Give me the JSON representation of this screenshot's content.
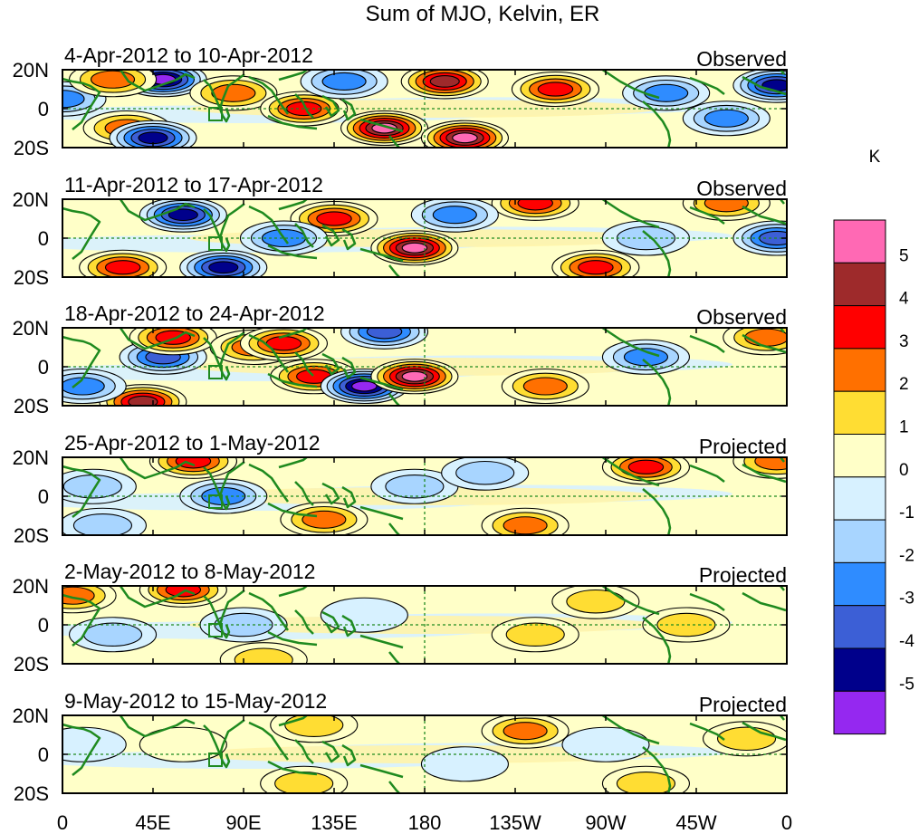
{
  "chart_data": {
    "type": "heatmap",
    "title": "Sum of MJO, Kelvin, ER",
    "units": "K",
    "x_ticks": [
      "0",
      "45E",
      "90E",
      "135E",
      "180",
      "135W",
      "90W",
      "45W",
      "0"
    ],
    "x_tick_values": [
      0,
      45,
      90,
      135,
      180,
      225,
      270,
      315,
      360
    ],
    "y_ticks": [
      "20N",
      "0",
      "20S"
    ],
    "y_tick_values": [
      20,
      0,
      -20
    ],
    "xlim": [
      0,
      360
    ],
    "ylim": [
      -20,
      20
    ],
    "colorbar": {
      "labels": [
        "5",
        "4",
        "3",
        "2",
        "1",
        "0",
        "-1",
        "-2",
        "-3",
        "-4",
        "-5"
      ],
      "colors": [
        "#ff69b4",
        "#9e2a2b",
        "#ff0000",
        "#ff7000",
        "#ffdd33",
        "#ffffc8",
        "#d7f1ff",
        "#a8d5ff",
        "#2f8cff",
        "#3c5fd6",
        "#00008b",
        "#9528f0"
      ]
    },
    "panels": [
      {
        "period": "4-Apr-2012 to 10-Apr-2012",
        "status": "Observed",
        "features": [
          {
            "lon": 50,
            "lat": 15,
            "v": -5.5
          },
          {
            "lon": 85,
            "lat": 8,
            "v": 2.5
          },
          {
            "lon": 32,
            "lat": -10,
            "v": 3
          },
          {
            "lon": 45,
            "lat": -15,
            "v": -4.5
          },
          {
            "lon": 120,
            "lat": 0,
            "v": 3.5
          },
          {
            "lon": 160,
            "lat": -10,
            "v": 5.5
          },
          {
            "lon": 190,
            "lat": 14,
            "v": 4.5
          },
          {
            "lon": 200,
            "lat": -15,
            "v": 5.5
          },
          {
            "lon": 245,
            "lat": 10,
            "v": 4
          },
          {
            "lon": 140,
            "lat": 14,
            "v": -2.5
          },
          {
            "lon": 0,
            "lat": 5,
            "v": -3
          },
          {
            "lon": 300,
            "lat": 8,
            "v": -3
          },
          {
            "lon": 355,
            "lat": 12,
            "v": -4.5
          },
          {
            "lon": 330,
            "lat": -5,
            "v": -3
          },
          {
            "lon": 25,
            "lat": 15,
            "v": 2.5
          }
        ]
      },
      {
        "period": "11-Apr-2012 to 17-Apr-2012",
        "status": "Observed",
        "features": [
          {
            "lon": 60,
            "lat": 12,
            "v": -4.5
          },
          {
            "lon": 30,
            "lat": -15,
            "v": 4
          },
          {
            "lon": 135,
            "lat": 10,
            "v": 3.5
          },
          {
            "lon": 175,
            "lat": -5,
            "v": 5.5
          },
          {
            "lon": 235,
            "lat": 18,
            "v": 3.5
          },
          {
            "lon": 265,
            "lat": -15,
            "v": 4
          },
          {
            "lon": 330,
            "lat": 18,
            "v": 3
          },
          {
            "lon": 80,
            "lat": -15,
            "v": -4.5
          },
          {
            "lon": 110,
            "lat": 0,
            "v": -3
          },
          {
            "lon": 195,
            "lat": 12,
            "v": -2.5
          },
          {
            "lon": 290,
            "lat": 0,
            "v": -2
          },
          {
            "lon": 355,
            "lat": 0,
            "v": -3.5
          }
        ]
      },
      {
        "period": "18-Apr-2012 to 24-Apr-2012",
        "status": "Observed",
        "features": [
          {
            "lon": 50,
            "lat": 5,
            "v": -4
          },
          {
            "lon": 55,
            "lat": 15,
            "v": 4
          },
          {
            "lon": 40,
            "lat": -18,
            "v": 4.5
          },
          {
            "lon": 95,
            "lat": 10,
            "v": 3
          },
          {
            "lon": 110,
            "lat": 12,
            "v": 4
          },
          {
            "lon": 125,
            "lat": -5,
            "v": 3.5
          },
          {
            "lon": 160,
            "lat": 18,
            "v": -3.5
          },
          {
            "lon": 150,
            "lat": -10,
            "v": -5.5
          },
          {
            "lon": 175,
            "lat": -5,
            "v": 5.5
          },
          {
            "lon": 240,
            "lat": -10,
            "v": 3
          },
          {
            "lon": 290,
            "lat": 5,
            "v": -3
          },
          {
            "lon": 10,
            "lat": -10,
            "v": -2.5
          },
          {
            "lon": 350,
            "lat": 15,
            "v": 2.5
          }
        ]
      },
      {
        "period": "25-Apr-2012 to 1-May-2012",
        "status": "Projected",
        "features": [
          {
            "lon": 65,
            "lat": 18,
            "v": 3.5
          },
          {
            "lon": 80,
            "lat": 0,
            "v": -3
          },
          {
            "lon": 290,
            "lat": 15,
            "v": 4
          },
          {
            "lon": 230,
            "lat": -15,
            "v": 3
          },
          {
            "lon": 130,
            "lat": -12,
            "v": 2.5
          },
          {
            "lon": 175,
            "lat": 5,
            "v": -2
          },
          {
            "lon": 210,
            "lat": 12,
            "v": -1.5
          },
          {
            "lon": 355,
            "lat": 18,
            "v": 3
          },
          {
            "lon": 15,
            "lat": 5,
            "v": -2
          },
          {
            "lon": 20,
            "lat": -15,
            "v": -1.5
          }
        ]
      },
      {
        "period": "2-May-2012 to 8-May-2012",
        "status": "Projected",
        "features": [
          {
            "lon": 60,
            "lat": 18,
            "v": 3.5
          },
          {
            "lon": 5,
            "lat": 15,
            "v": 3
          },
          {
            "lon": 90,
            "lat": 0,
            "v": -1.5
          },
          {
            "lon": 235,
            "lat": -5,
            "v": 1.5
          },
          {
            "lon": 265,
            "lat": 12,
            "v": 2
          },
          {
            "lon": 310,
            "lat": 0,
            "v": 1.5
          },
          {
            "lon": 25,
            "lat": -5,
            "v": -1.5
          },
          {
            "lon": 150,
            "lat": 5,
            "v": -1
          },
          {
            "lon": 100,
            "lat": -18,
            "v": 1.5
          }
        ]
      },
      {
        "period": "9-May-2012 to 15-May-2012",
        "status": "Projected",
        "features": [
          {
            "lon": 230,
            "lat": 12,
            "v": 2.5
          },
          {
            "lon": 120,
            "lat": -15,
            "v": 2
          },
          {
            "lon": 125,
            "lat": 15,
            "v": 1.5
          },
          {
            "lon": 340,
            "lat": 8,
            "v": 1.5
          },
          {
            "lon": 290,
            "lat": -15,
            "v": 1.5
          },
          {
            "lon": 10,
            "lat": 5,
            "v": -1
          },
          {
            "lon": 200,
            "lat": -5,
            "v": -1
          },
          {
            "lon": 270,
            "lat": 5,
            "v": -1
          },
          {
            "lon": 60,
            "lat": 5,
            "v": 1
          }
        ]
      }
    ]
  }
}
